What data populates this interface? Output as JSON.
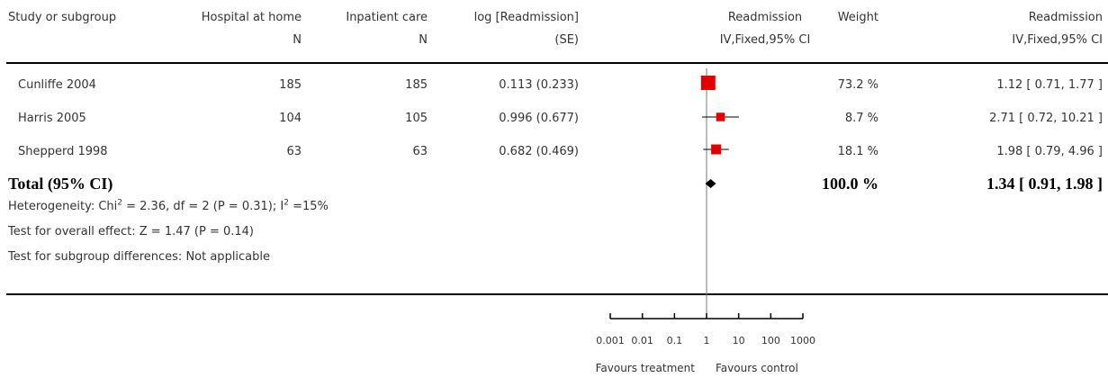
{
  "header": {
    "study": "Study or subgroup",
    "hosp": "Hospital at home",
    "hosp_n": "N",
    "inpat": "Inpatient care",
    "inpat_n": "N",
    "log": "log [Readmission]",
    "log_se": "(SE)",
    "plot_title": "Readmission",
    "plot_method": "IV,Fixed,95% CI",
    "weight": "Weight",
    "eff_title": "Readmission",
    "eff_method": "IV,Fixed,95% CI"
  },
  "rows": [
    {
      "study": "Cunliffe 2004",
      "hosp_n": "185",
      "inpat_n": "185",
      "logse": "0.113 (0.233)",
      "weight": "73.2 %",
      "ci": "1.12 [ 0.71, 1.77 ]"
    },
    {
      "study": "Harris 2005",
      "hosp_n": "104",
      "inpat_n": "105",
      "logse": "0.996 (0.677)",
      "weight": "8.7 %",
      "ci": "2.71 [ 0.72, 10.21 ]"
    },
    {
      "study": "Shepperd 1998",
      "hosp_n": "63",
      "inpat_n": "63",
      "logse": "0.682 (0.469)",
      "weight": "18.1 %",
      "ci": "1.98 [ 0.79, 4.96 ]"
    }
  ],
  "total": {
    "label": "Total (95% CI)",
    "weight": "100.0 %",
    "ci": "1.34 [ 0.91, 1.98 ]"
  },
  "heterogeneity": {
    "prefix": "Heterogeneity: Chi",
    "sup1": "2",
    "mid": " = 2.36, df = 2 (P = 0.31); I",
    "sup2": "2",
    "suffix": " =15%"
  },
  "overall_effect": "Test for overall effect: Z = 1.47 (P = 0.14)",
  "subgroup": "Test for subgroup differences: Not applicable",
  "axis": {
    "favours_left": "Favours treatment",
    "favours_right": "Favours control"
  },
  "colors": {
    "study_marker": "#e00000",
    "diamond": "#000000",
    "axis": "#000000"
  },
  "chart_data": {
    "type": "forest",
    "x_scale": "log",
    "xlim": [
      0.001,
      1000
    ],
    "ticks": [
      0.001,
      0.01,
      0.1,
      1,
      10,
      100,
      1000
    ],
    "tick_labels": [
      "0.001",
      "0.01",
      "0.1",
      "1",
      "10",
      "100",
      "1000"
    ],
    "reference_line": 1,
    "studies": [
      {
        "name": "Cunliffe 2004",
        "estimate": 1.12,
        "ci_low": 0.71,
        "ci_high": 1.77,
        "weight": 73.2
      },
      {
        "name": "Harris 2005",
        "estimate": 2.71,
        "ci_low": 0.72,
        "ci_high": 10.21,
        "weight": 8.7
      },
      {
        "name": "Shepperd 1998",
        "estimate": 1.98,
        "ci_low": 0.79,
        "ci_high": 4.96,
        "weight": 18.1
      }
    ],
    "total": {
      "name": "Total (95% CI)",
      "estimate": 1.34,
      "ci_low": 0.91,
      "ci_high": 1.98
    }
  }
}
